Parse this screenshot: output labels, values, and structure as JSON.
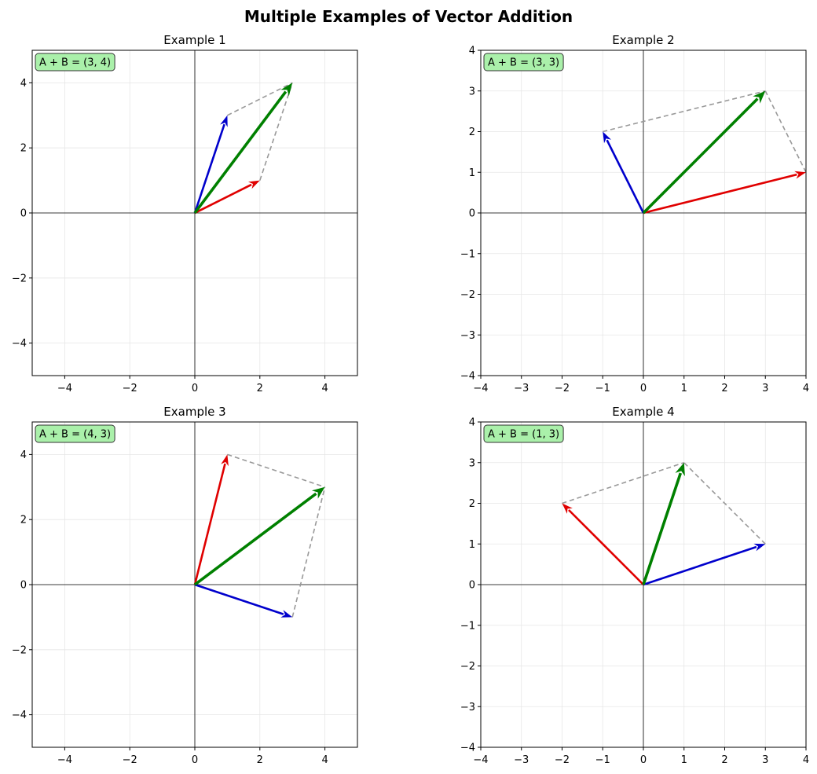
{
  "figure_title": "Multiple Examples of Vector Addition",
  "colors": {
    "vector_a": "#e00000",
    "vector_b": "#0000cc",
    "sum": "#008000",
    "parallelogram": "#999999",
    "badge_fill": "#aaf0aa",
    "grid": "#e6e6e6"
  },
  "chart_data": [
    {
      "type": "quiver",
      "title": "Example 1",
      "xlim": [
        -5,
        5
      ],
      "ylim": [
        -5,
        5
      ],
      "xticks": [
        -4,
        -2,
        0,
        2,
        4
      ],
      "yticks": [
        -4,
        -2,
        0,
        2,
        4
      ],
      "grid": true,
      "annotation": "A + B = (3, 4)",
      "vectors": {
        "A": [
          2,
          1
        ],
        "B": [
          1,
          3
        ],
        "sum": [
          3,
          4
        ]
      }
    },
    {
      "type": "quiver",
      "title": "Example 2",
      "xlim": [
        -4,
        4
      ],
      "ylim": [
        -4,
        4
      ],
      "xticks": [
        -4,
        -3,
        -2,
        -1,
        0,
        1,
        2,
        3,
        4
      ],
      "yticks": [
        -4,
        -3,
        -2,
        -1,
        0,
        1,
        2,
        3,
        4
      ],
      "grid": true,
      "annotation": "A + B = (3, 3)",
      "vectors": {
        "A": [
          4,
          1
        ],
        "B": [
          -1,
          2
        ],
        "sum": [
          3,
          3
        ]
      }
    },
    {
      "type": "quiver",
      "title": "Example 3",
      "xlim": [
        -5,
        5
      ],
      "ylim": [
        -5,
        5
      ],
      "xticks": [
        -4,
        -2,
        0,
        2,
        4
      ],
      "yticks": [
        -4,
        -2,
        0,
        2,
        4
      ],
      "grid": true,
      "annotation": "A + B = (4, 3)",
      "vectors": {
        "A": [
          1,
          4
        ],
        "B": [
          3,
          -1
        ],
        "sum": [
          4,
          3
        ]
      }
    },
    {
      "type": "quiver",
      "title": "Example 4",
      "xlim": [
        -4,
        4
      ],
      "ylim": [
        -4,
        4
      ],
      "xticks": [
        -4,
        -3,
        -2,
        -1,
        0,
        1,
        2,
        3,
        4
      ],
      "yticks": [
        -4,
        -3,
        -2,
        -1,
        0,
        1,
        2,
        3,
        4
      ],
      "grid": true,
      "annotation": "A + B = (1, 3)",
      "vectors": {
        "A": [
          -2,
          2
        ],
        "B": [
          3,
          1
        ],
        "sum": [
          1,
          3
        ]
      }
    }
  ]
}
